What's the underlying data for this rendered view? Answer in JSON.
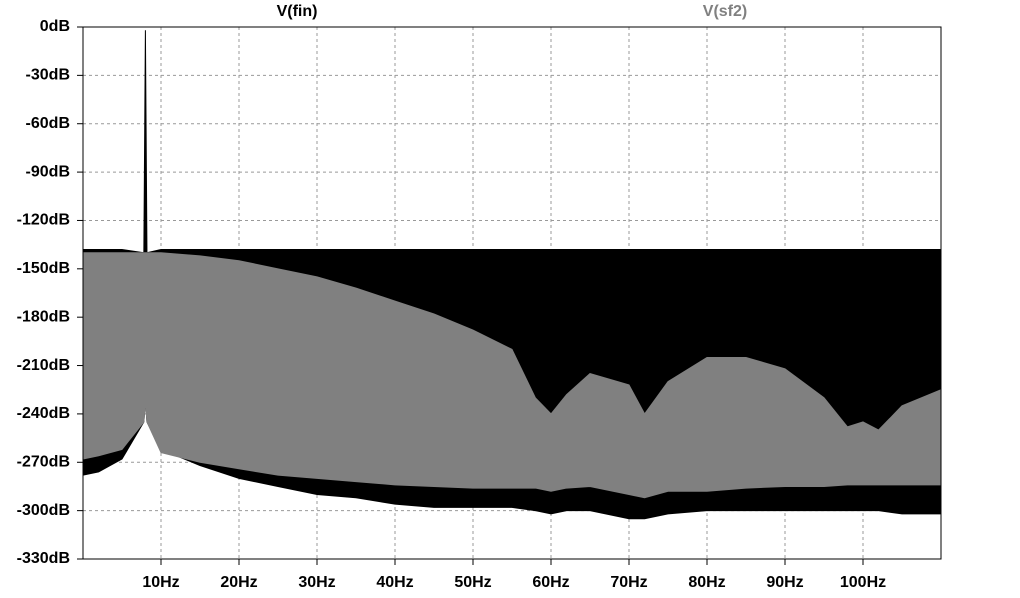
{
  "chart_data": {
    "type": "band",
    "x": [
      0,
      2,
      5,
      7.8,
      8,
      8.2,
      10,
      15,
      20,
      25,
      30,
      35,
      40,
      45,
      50,
      55,
      58,
      60,
      62,
      65,
      70,
      72,
      75,
      80,
      85,
      90,
      95,
      98,
      100,
      102,
      105,
      110
    ],
    "series": [
      {
        "name": "V(fin)",
        "color": "#000000",
        "values": [
          -138,
          -138,
          -138,
          -140,
          -2,
          -140,
          -138,
          -138,
          -138,
          -138,
          -138,
          -138,
          -138,
          -138,
          -138,
          -138,
          -138,
          -138,
          -138,
          -138,
          -138,
          -138,
          -138,
          -138,
          -138,
          -138,
          -138,
          -138,
          -138,
          -138,
          -138,
          -138
        ],
        "low": [
          -278,
          -276,
          -268,
          -245,
          -232,
          -245,
          -262,
          -272,
          -280,
          -285,
          -290,
          -292,
          -296,
          -298,
          -298,
          -298,
          -300,
          -302,
          -300,
          -300,
          -305,
          -305,
          -302,
          -300,
          -300,
          -300,
          -300,
          -300,
          -300,
          -300,
          -302,
          -302
        ]
      },
      {
        "name": "V(sf2)",
        "color": "#808080",
        "values": [
          -140,
          -140,
          -140,
          -140,
          -140,
          -140,
          -140,
          -142,
          -145,
          -150,
          -155,
          -162,
          -170,
          -178,
          -188,
          -200,
          -230,
          -240,
          -228,
          -215,
          -222,
          -240,
          -220,
          -205,
          -205,
          -212,
          -230,
          -248,
          -245,
          -250,
          -235,
          -225
        ],
        "low": [
          -268,
          -266,
          -262,
          -245,
          -232,
          -245,
          -264,
          -270,
          -274,
          -278,
          -280,
          -282,
          -284,
          -285,
          -286,
          -286,
          -286,
          -288,
          -286,
          -285,
          -290,
          -292,
          -288,
          -288,
          -286,
          -285,
          -285,
          -284,
          -284,
          -284,
          -284,
          -284
        ]
      }
    ],
    "xlim": [
      0,
      110
    ],
    "ylim": [
      -330,
      0
    ],
    "xticks": [
      {
        "value": 10,
        "label": "10Hz"
      },
      {
        "value": 20,
        "label": "20Hz"
      },
      {
        "value": 30,
        "label": "30Hz"
      },
      {
        "value": 40,
        "label": "40Hz"
      },
      {
        "value": 50,
        "label": "50Hz"
      },
      {
        "value": 60,
        "label": "60Hz"
      },
      {
        "value": 70,
        "label": "70Hz"
      },
      {
        "value": 80,
        "label": "80Hz"
      },
      {
        "value": 90,
        "label": "90Hz"
      },
      {
        "value": 100,
        "label": "100Hz"
      }
    ],
    "yticks": [
      {
        "value": 0,
        "label": "0dB"
      },
      {
        "value": -30,
        "label": "-30dB"
      },
      {
        "value": -60,
        "label": "-60dB"
      },
      {
        "value": -90,
        "label": "-90dB"
      },
      {
        "value": -120,
        "label": "-120dB"
      },
      {
        "value": -150,
        "label": "-150dB"
      },
      {
        "value": -180,
        "label": "-180dB"
      },
      {
        "value": -210,
        "label": "-210dB"
      },
      {
        "value": -240,
        "label": "-240dB"
      },
      {
        "value": -270,
        "label": "-270dB"
      },
      {
        "value": -300,
        "label": "-300dB"
      },
      {
        "value": -330,
        "label": "-330dB"
      }
    ],
    "grid": true
  }
}
